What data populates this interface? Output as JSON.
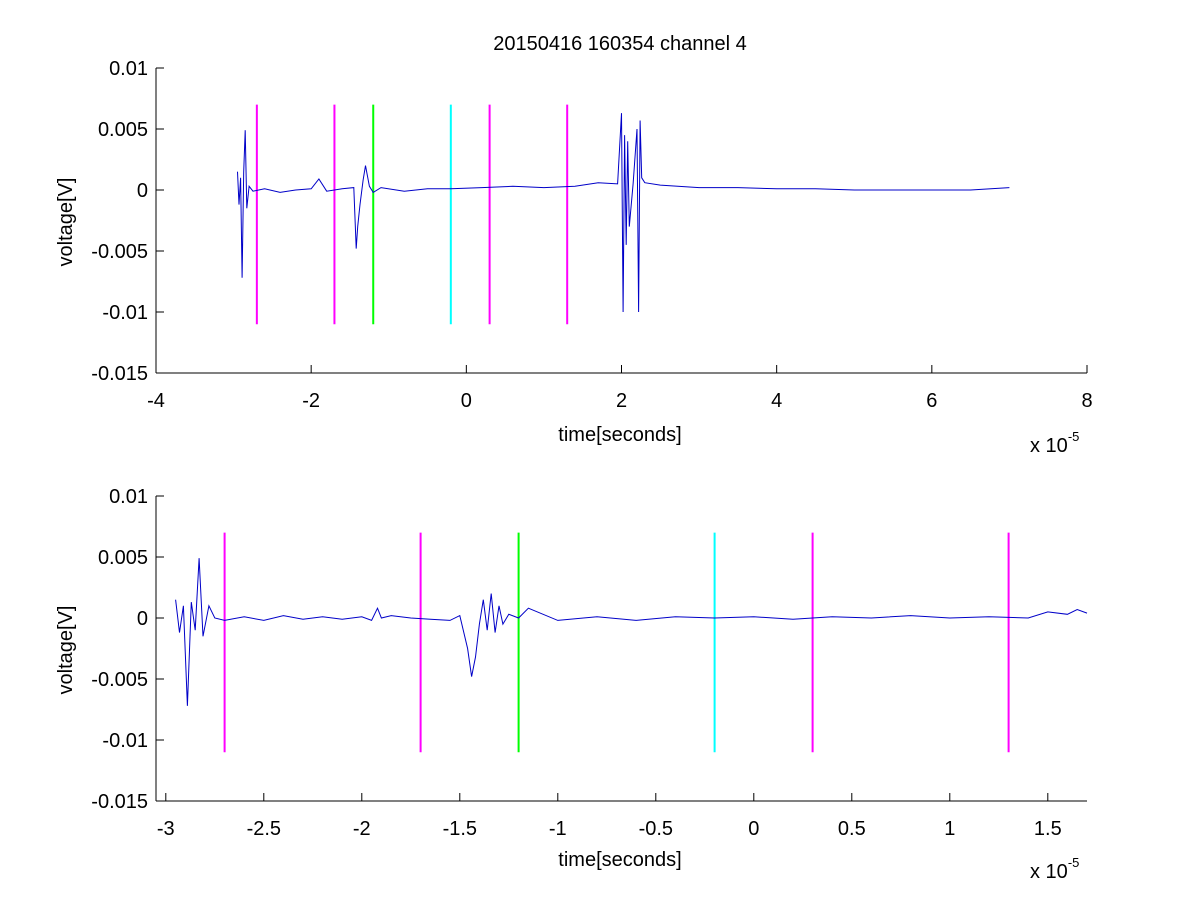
{
  "figure_title": "20150416 160354 channel 4",
  "chart_data": [
    {
      "type": "line",
      "title": "20150416 160354 channel 4",
      "xlabel": "time[seconds]",
      "ylabel": "voltage[V]",
      "x_scale_label": "x 10",
      "x_scale_exponent": "-5",
      "xlim": [
        -4,
        8
      ],
      "ylim": [
        -0.015,
        0.01
      ],
      "x_ticks": [
        -4,
        -2,
        0,
        2,
        4,
        6,
        8
      ],
      "x_tick_labels": [
        "-4",
        "-2",
        "0",
        "2",
        "4",
        "6",
        "8"
      ],
      "y_ticks": [
        0.01,
        0.005,
        0,
        -0.005,
        -0.01,
        -0.015
      ],
      "y_tick_labels": [
        "0.01",
        "0.005",
        "0",
        "-0.005",
        "-0.01",
        "-0.015"
      ],
      "grid": false,
      "series": [
        {
          "color": "#0000c8",
          "x": [
            -2.95,
            -2.93,
            -2.91,
            -2.89,
            -2.87,
            -2.85,
            -2.83,
            -2.8,
            -2.75,
            -2.6,
            -2.4,
            -2.2,
            -2.0,
            -1.9,
            -1.8,
            -1.6,
            -1.45,
            -1.42,
            -1.4,
            -1.37,
            -1.33,
            -1.3,
            -1.25,
            -1.2,
            -1.1,
            -0.8,
            -0.5,
            -0.2,
            0.2,
            0.6,
            1.0,
            1.4,
            1.7,
            1.95,
            2.0,
            2.02,
            2.04,
            2.06,
            2.08,
            2.1,
            2.15,
            2.2,
            2.22,
            2.24,
            2.26,
            2.3,
            2.5,
            3.0,
            3.5,
            4.0,
            4.5,
            5.0,
            5.5,
            6.0,
            6.5,
            7.0
          ],
          "y": [
            0.0015,
            -0.0012,
            0.001,
            -0.0072,
            0.0015,
            0.0049,
            -0.0015,
            0.0003,
            -0.0001,
            0.0001,
            -0.0002,
            0.0,
            0.0001,
            0.0009,
            -0.0001,
            0.0001,
            0.0002,
            -0.0048,
            -0.003,
            -0.0012,
            0.0008,
            0.002,
            0.0003,
            -0.0002,
            0.0002,
            -0.0001,
            0.0001,
            0.0001,
            0.0002,
            0.0003,
            0.0002,
            0.0003,
            0.0006,
            0.0005,
            0.0063,
            -0.01,
            0.0045,
            -0.0045,
            0.004,
            -0.003,
            0.0005,
            0.005,
            -0.01,
            0.0057,
            0.001,
            0.0006,
            0.0004,
            0.0002,
            0.0002,
            0.0001,
            0.0001,
            0.0,
            0.0,
            0.0,
            0.0,
            0.0002
          ]
        }
      ],
      "markers": [
        {
          "x": -2.7,
          "color": "#ff00ff"
        },
        {
          "x": -1.7,
          "color": "#ff00ff"
        },
        {
          "x": -1.2,
          "color": "#00ff00"
        },
        {
          "x": -0.2,
          "color": "#00ffff"
        },
        {
          "x": 0.3,
          "color": "#ff00ff"
        },
        {
          "x": 1.3,
          "color": "#ff00ff"
        }
      ],
      "marker_range": [
        -0.011,
        0.007
      ]
    },
    {
      "type": "line",
      "xlabel": "time[seconds]",
      "ylabel": "voltage[V]",
      "x_scale_label": "x 10",
      "x_scale_exponent": "-5",
      "xlim": [
        -3.05,
        1.7
      ],
      "ylim": [
        -0.015,
        0.01
      ],
      "x_ticks": [
        -3,
        -2.5,
        -2,
        -1.5,
        -1,
        -0.5,
        0,
        0.5,
        1,
        1.5
      ],
      "x_tick_labels": [
        "-3",
        "-2.5",
        "-2",
        "-1.5",
        "-1",
        "-0.5",
        "0",
        "0.5",
        "1",
        "1.5"
      ],
      "y_ticks": [
        0.01,
        0.005,
        0,
        -0.005,
        -0.01,
        -0.015
      ],
      "y_tick_labels": [
        "0.01",
        "0.005",
        "0",
        "-0.005",
        "-0.01",
        "-0.015"
      ],
      "grid": false,
      "series": [
        {
          "color": "#0000c8",
          "x": [
            -2.95,
            -2.93,
            -2.91,
            -2.89,
            -2.87,
            -2.85,
            -2.83,
            -2.81,
            -2.78,
            -2.75,
            -2.7,
            -2.6,
            -2.5,
            -2.4,
            -2.3,
            -2.2,
            -2.1,
            -2.0,
            -1.95,
            -1.92,
            -1.9,
            -1.85,
            -1.75,
            -1.65,
            -1.55,
            -1.5,
            -1.46,
            -1.44,
            -1.42,
            -1.4,
            -1.38,
            -1.36,
            -1.34,
            -1.32,
            -1.3,
            -1.28,
            -1.25,
            -1.2,
            -1.15,
            -1.0,
            -0.8,
            -0.6,
            -0.4,
            -0.2,
            0.0,
            0.2,
            0.4,
            0.6,
            0.8,
            1.0,
            1.2,
            1.4,
            1.5,
            1.6,
            1.65,
            1.7
          ],
          "y": [
            0.0015,
            -0.0012,
            0.001,
            -0.0072,
            0.0013,
            -0.001,
            0.0049,
            -0.0015,
            0.001,
            0.0,
            -0.0002,
            0.0001,
            -0.0002,
            0.0002,
            -0.0001,
            0.0001,
            -0.0001,
            0.0001,
            -0.0002,
            0.0008,
            0.0,
            0.0002,
            0.0,
            -0.0001,
            -0.0002,
            0.0002,
            -0.0025,
            -0.0048,
            -0.0032,
            -0.0005,
            0.0015,
            -0.001,
            0.002,
            -0.0012,
            0.001,
            -0.0005,
            0.0003,
            0.0,
            0.0008,
            -0.0002,
            0.0001,
            -0.0002,
            0.0001,
            0.0,
            0.0001,
            -0.0001,
            0.0001,
            0.0,
            0.0002,
            0.0,
            0.0001,
            0.0,
            0.0005,
            0.0003,
            0.0007,
            0.0004
          ]
        }
      ],
      "markers": [
        {
          "x": -2.7,
          "color": "#ff00ff"
        },
        {
          "x": -1.7,
          "color": "#ff00ff"
        },
        {
          "x": -1.2,
          "color": "#00ff00"
        },
        {
          "x": -0.2,
          "color": "#00ffff"
        },
        {
          "x": 0.3,
          "color": "#ff00ff"
        },
        {
          "x": 1.3,
          "color": "#ff00ff"
        }
      ],
      "marker_range": [
        -0.011,
        0.007
      ]
    }
  ]
}
